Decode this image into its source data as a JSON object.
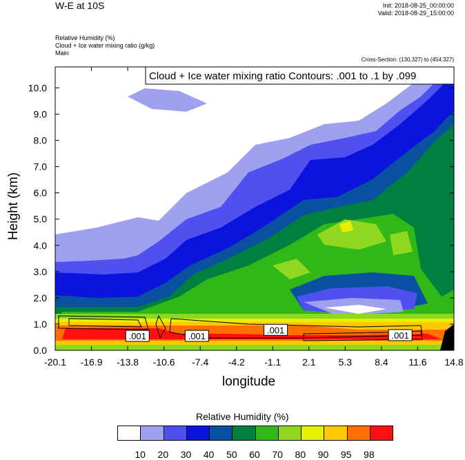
{
  "header": {
    "title": "W-E at 10S",
    "init": "Init: 2018-08-25_00:00:00",
    "valid": "Valid: 2018-08-29_15:00:00",
    "field1": "Relative Humidity   (%)",
    "field2": "Cloud + Ice water mixing ratio   (g/kg)",
    "field3": "Main",
    "cross_section": "Cross-Section: (130,327) to (454,327)"
  },
  "chart_data": {
    "type": "heatmap",
    "title": "W-E at 10S",
    "xlabel": "longitude",
    "ylabel": "Height (km)",
    "x_ticks": [
      "-20.1",
      "-16.9",
      "-13.8",
      "-10.6",
      "-7.4",
      "-4.2",
      "-1.1",
      "2.1",
      "5.3",
      "8.4",
      "11.6",
      "14.8"
    ],
    "y_ticks": [
      "0.0",
      "1.0",
      "2.0",
      "3.0",
      "4.0",
      "5.0",
      "6.0",
      "7.0",
      "8.0",
      "9.0",
      "10.0"
    ],
    "xlim": [
      -20.1,
      14.8
    ],
    "ylim": [
      0,
      10.8
    ],
    "contour_legend": "Cloud + Ice water mixing ratio Contours: .001 to .1 by .099",
    "contour_labels": [
      {
        "text": ".001",
        "x": -12.9,
        "y": 0.55
      },
      {
        "text": ".001",
        "x": -7.7,
        "y": 0.55
      },
      {
        "text": ".001",
        "x": -0.8,
        "y": 0.78
      },
      {
        "text": ".001",
        "x": 10.1,
        "y": 0.58
      }
    ],
    "colorbar": {
      "title": "Relative Humidity  (%)",
      "levels": [
        "10",
        "20",
        "30",
        "40",
        "50",
        "60",
        "70",
        "80",
        "90",
        "95",
        "98"
      ],
      "colors": [
        "#ffffff",
        "#a0a0f0",
        "#5050f0",
        "#0a14dc",
        "#0a50a0",
        "#008040",
        "#30b818",
        "#90d820",
        "#e6f000",
        "#ffc800",
        "#ff7000",
        "#ff1010"
      ]
    },
    "region_levels": {
      "dry_upper": "10",
      "mid_moist_core": "90",
      "boundary_layer": "98"
    }
  }
}
